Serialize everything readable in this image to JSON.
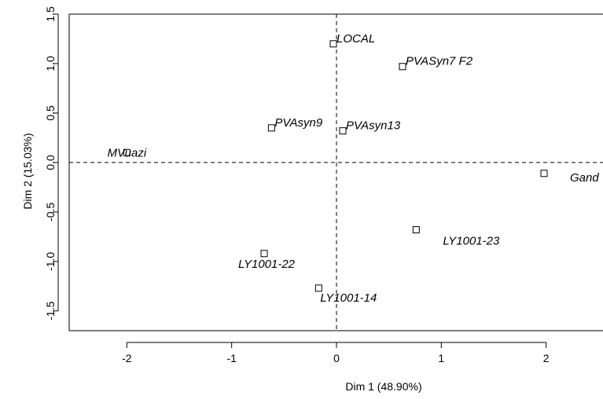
{
  "chart_data": {
    "type": "scatter",
    "title": "",
    "xlabel": "Dim 1 (48.90%)",
    "ylabel": "Dim 2 (15.03%)",
    "xlim": [
      -2.55,
      2.55
    ],
    "ylim": [
      -1.7,
      1.5
    ],
    "xticks": [
      -2,
      -1,
      0,
      1,
      2
    ],
    "xtick_labels": [
      "-2",
      "-1",
      "0",
      "1",
      "2"
    ],
    "yticks": [
      -1.5,
      -1.0,
      -0.5,
      0.0,
      0.5,
      1.0,
      1.5
    ],
    "ytick_labels": [
      "-1.5",
      "-1.0",
      "-0.5",
      "0.0",
      "0.5",
      "1.0",
      "1.5"
    ],
    "reference_lines": {
      "x": 0,
      "y": 0,
      "style": "dashed"
    },
    "marker": "open-square",
    "points": [
      {
        "label": "LOCAL",
        "x": -0.03,
        "y": 1.2,
        "label_pos": "right"
      },
      {
        "label": "PVASyn7 F2",
        "x": 0.63,
        "y": 0.97,
        "label_pos": "right"
      },
      {
        "label": "PVAsyn9",
        "x": -0.62,
        "y": 0.35,
        "label_pos": "right"
      },
      {
        "label": "PVAsyn13",
        "x": 0.06,
        "y": 0.32,
        "label_pos": "right"
      },
      {
        "label": "MVuazi",
        "x": -2.0,
        "y": 0.1,
        "label_pos": "center"
      },
      {
        "label": "Gand",
        "x": 1.98,
        "y": -0.11,
        "label_pos": "below-right"
      },
      {
        "label": "LY1001-23",
        "x": 0.76,
        "y": -0.68,
        "label_pos": "below-right"
      },
      {
        "label": "LY1001-22",
        "x": -0.69,
        "y": -0.92,
        "label_pos": "below-left"
      },
      {
        "label": "LY1001-14",
        "x": -0.17,
        "y": -1.27,
        "label_pos": "below-right"
      }
    ]
  }
}
